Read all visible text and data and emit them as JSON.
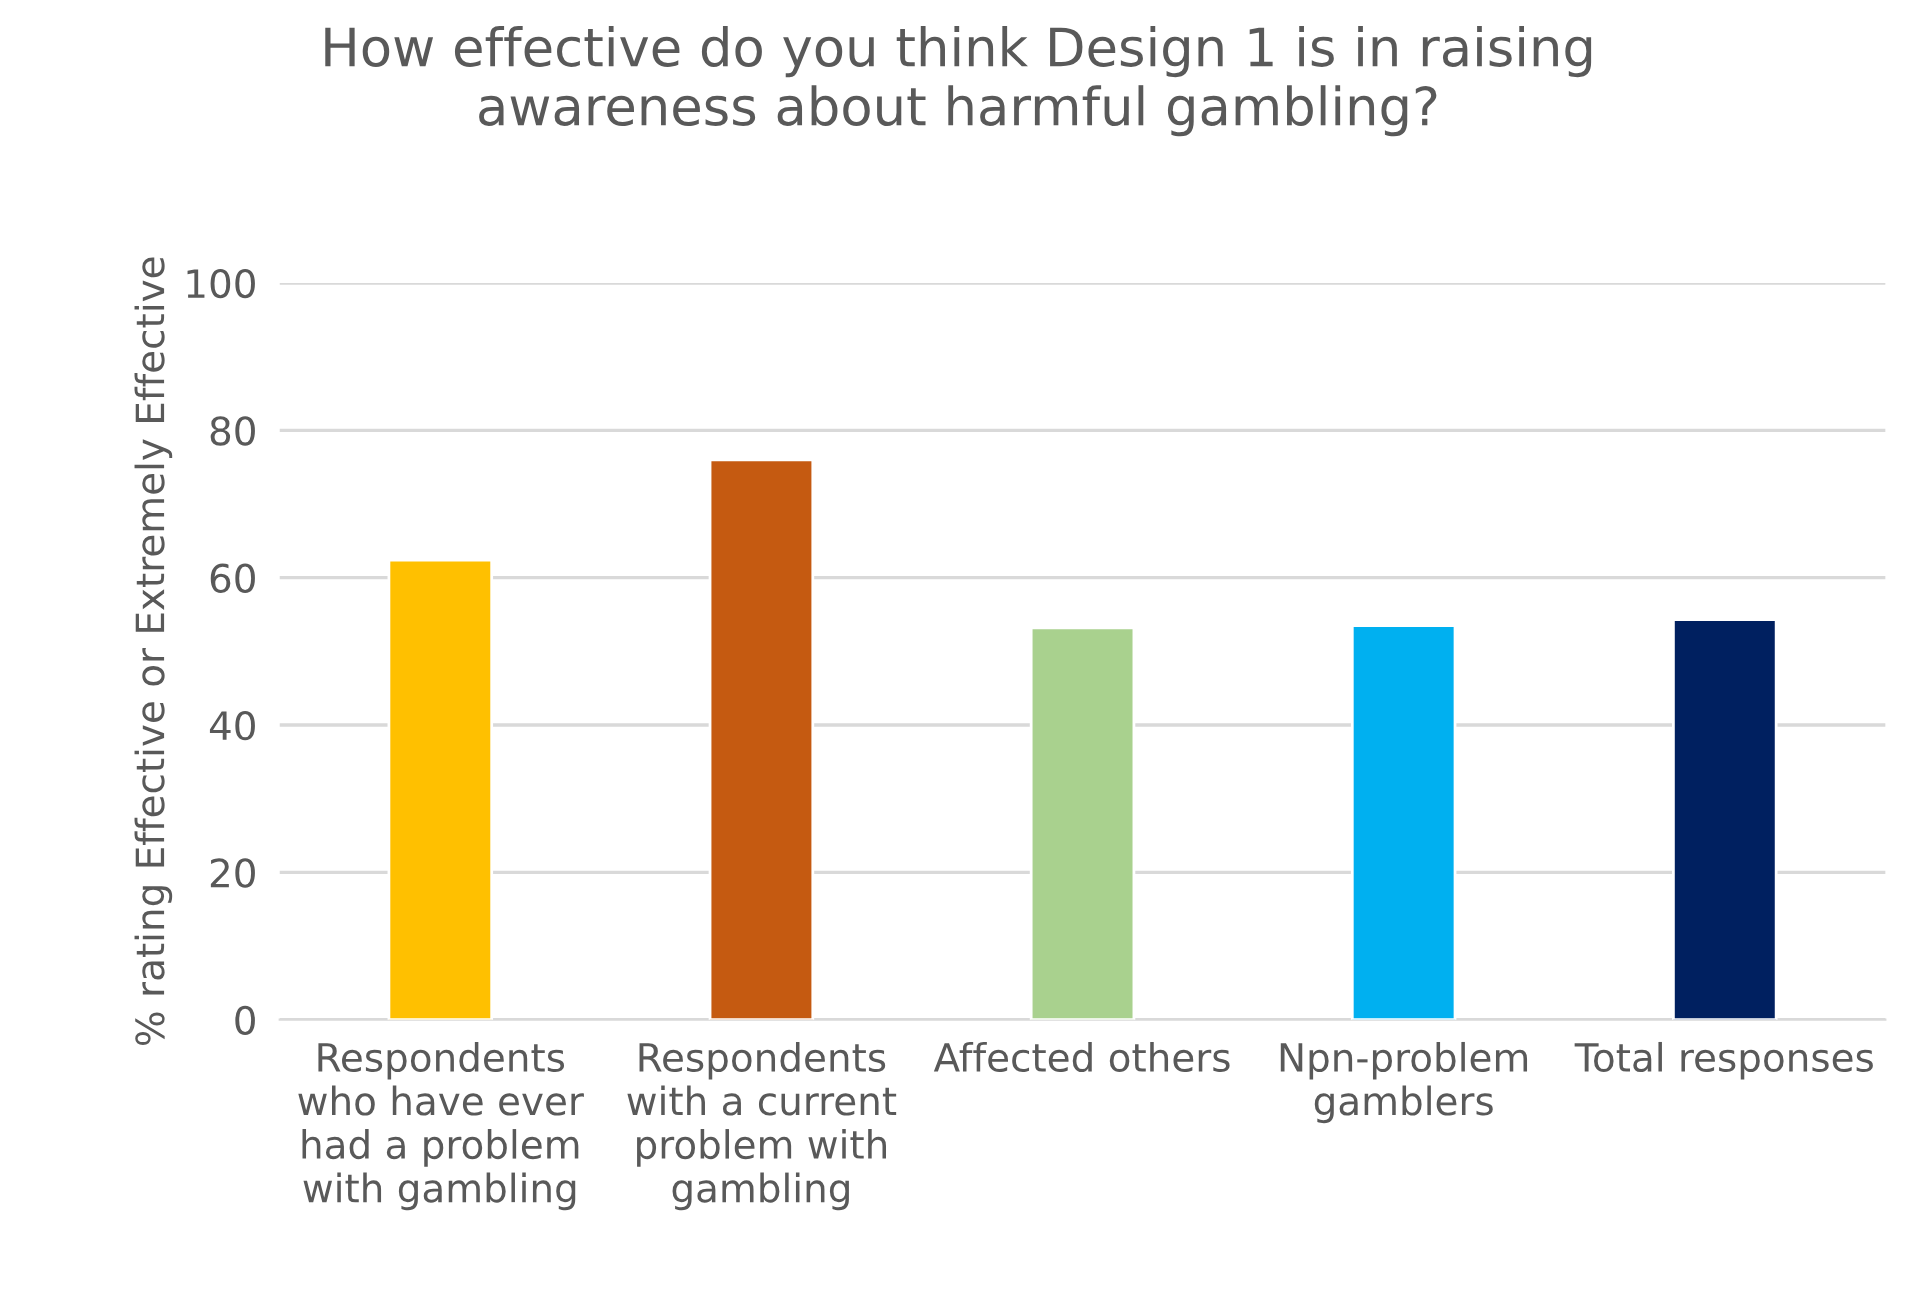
{
  "chart_data": {
    "type": "bar",
    "title": "How effective do you think Design 1 is in raising\nawareness about harmful gambling?",
    "ylabel": "% rating Effective or Extremely Effective",
    "categories": [
      "Respondents\nwho have ever\nhad a problem\nwith gambling",
      "Respondents\nwith a current\nproblem with\ngambling",
      "Affected others",
      "Npn-problem\ngamblers",
      "Total responses"
    ],
    "values": [
      62.4,
      76.0,
      53.2,
      53.5,
      54.3
    ],
    "colors": [
      "#ffc000",
      "#c55a11",
      "#a9d18e",
      "#00b0f0",
      "#002060"
    ],
    "ylim": [
      0,
      100
    ],
    "yticks": [
      0,
      20,
      40,
      60,
      80,
      100
    ],
    "grid": "y"
  }
}
